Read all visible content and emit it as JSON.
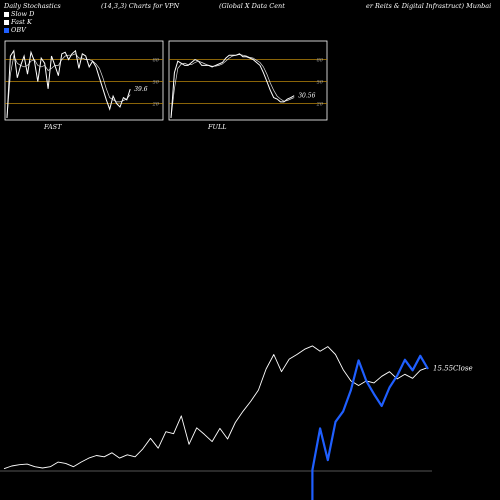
{
  "header": {
    "title_left": "Daily Stochastics",
    "params": "(14,3,3) Charts for VPN",
    "name_part1": "(Global X  Data  Cent",
    "name_part2": "er Reits & Digital Infrastruct) Munbai"
  },
  "legend": [
    {
      "label": "Slow  D",
      "color": "#ffffff"
    },
    {
      "label": "Fast K",
      "color": "#ffffff"
    },
    {
      "label": "OBV",
      "color": "#1f5fff"
    }
  ],
  "panels": {
    "fast": {
      "label": "FAST",
      "value_label": "39.6",
      "grid_labels": [
        "80",
        "50",
        "20"
      ],
      "k": [
        0,
        85,
        92,
        55,
        72,
        85,
        60,
        90,
        78,
        50,
        82,
        75,
        40,
        85,
        72,
        58,
        88,
        90,
        80,
        88,
        92,
        68,
        88,
        85,
        70,
        78,
        70,
        55,
        40,
        25,
        12,
        30,
        20,
        15,
        28,
        25,
        39.6
      ],
      "d": [
        0,
        60,
        85,
        75,
        72,
        70,
        72,
        78,
        80,
        72,
        70,
        72,
        65,
        68,
        72,
        72,
        80,
        85,
        86,
        86,
        88,
        82,
        82,
        80,
        80,
        78,
        74,
        68,
        55,
        40,
        28,
        25,
        22,
        22,
        24,
        26,
        32
      ]
    },
    "full": {
      "label": "FULL",
      "value_label": "30.56",
      "grid_labels": [
        "80",
        "50",
        "20"
      ],
      "k": [
        0,
        62,
        78,
        75,
        72,
        72,
        76,
        80,
        78,
        72,
        72,
        72,
        70,
        72,
        74,
        76,
        82,
        86,
        86,
        86,
        88,
        84,
        84,
        82,
        80,
        76,
        72,
        62,
        50,
        38,
        28,
        26,
        22,
        22,
        26,
        28,
        30.56
      ],
      "d": [
        0,
        40,
        68,
        74,
        75,
        73,
        73,
        76,
        78,
        76,
        74,
        72,
        71,
        71,
        72,
        74,
        78,
        82,
        85,
        86,
        87,
        86,
        85,
        83,
        82,
        79,
        76,
        70,
        60,
        48,
        38,
        30,
        26,
        23,
        24,
        26,
        28
      ]
    }
  },
  "chart_data": {
    "type": "line",
    "close_label": "15.55Close",
    "series": [
      {
        "name": "Close",
        "color": "#ffffff",
        "values": [
          0.2,
          0.6,
          0.8,
          0.9,
          0.5,
          0.3,
          0.5,
          1.2,
          1.0,
          0.5,
          1.2,
          1.8,
          2.2,
          2.0,
          2.6,
          1.8,
          2.3,
          2.0,
          3.2,
          4.8,
          3.3,
          5.8,
          5.5,
          8.2,
          3.9,
          6.4,
          5.4,
          4.3,
          6.3,
          4.7,
          7.2,
          8.9,
          10.4,
          12.1,
          15.3,
          17.5,
          14.9,
          16.8,
          17.5,
          18.3,
          18.8,
          18.0,
          18.7,
          17.5,
          15.2,
          13.5,
          12.8,
          13.5,
          13.2,
          14.2,
          14.9,
          13.8,
          14.5,
          13.9,
          15.1,
          15.55
        ]
      },
      {
        "name": "OBV",
        "color": "#1f5fff",
        "values": [
          null,
          null,
          null,
          null,
          null,
          null,
          null,
          null,
          null,
          null,
          null,
          null,
          null,
          null,
          null,
          null,
          null,
          null,
          null,
          null,
          null,
          null,
          null,
          null,
          null,
          null,
          null,
          null,
          null,
          null,
          null,
          null,
          null,
          null,
          null,
          null,
          null,
          null,
          null,
          null,
          0.0,
          6.3,
          1.5,
          7.3,
          8.9,
          12.1,
          16.6,
          13.5,
          11.5,
          9.7,
          12.5,
          14.3,
          16.7,
          15.1,
          17.3,
          15.3
        ]
      }
    ]
  }
}
